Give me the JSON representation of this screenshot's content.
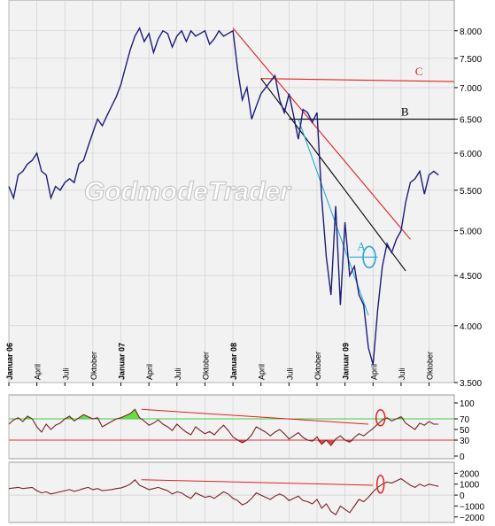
{
  "watermark": "GodmodeTrader",
  "colors": {
    "price_line": "#1c1c7a",
    "red": "#e02020",
    "black": "#000000",
    "cyan": "#22aadd",
    "osc_line": "#7a2020",
    "band_green": "#44cc44",
    "band_red": "#dd3333",
    "fill_green": "#66dd44",
    "fill_red": "#dd4444",
    "grid": "#cccccc"
  },
  "chart_data": [
    {
      "type": "line",
      "name": "price",
      "y_log": true,
      "ylim": [
        3500,
        8600
      ],
      "y_ticks": [
        3500,
        4000,
        4500,
        5000,
        5500,
        6000,
        6500,
        7000,
        7500,
        8000
      ],
      "y_tick_labels": [
        "3.500",
        "4.000",
        "4.500",
        "5.000",
        "5.500",
        "6.000",
        "6.500",
        "7.000",
        "7.500",
        "8.000"
      ],
      "xlim": [
        0,
        47.7
      ],
      "x_ticks": [
        {
          "month": 0,
          "label": "Januar 06",
          "bold": true
        },
        {
          "month": 3,
          "label": "April",
          "bold": false
        },
        {
          "month": 6,
          "label": "Juli",
          "bold": false
        },
        {
          "month": 9,
          "label": "Oktober",
          "bold": false
        },
        {
          "month": 12,
          "label": "Januar 07",
          "bold": true
        },
        {
          "month": 15,
          "label": "April",
          "bold": false
        },
        {
          "month": 18,
          "label": "Juli",
          "bold": false
        },
        {
          "month": 21,
          "label": "Oktober",
          "bold": false
        },
        {
          "month": 24,
          "label": "Januar 08",
          "bold": true
        },
        {
          "month": 27,
          "label": "April",
          "bold": false
        },
        {
          "month": 30,
          "label": "Juli",
          "bold": false
        },
        {
          "month": 33,
          "label": "Oktober",
          "bold": false
        },
        {
          "month": 36,
          "label": "Januar 09",
          "bold": true
        },
        {
          "month": 39,
          "label": "April",
          "bold": false
        },
        {
          "month": 42,
          "label": "Juli",
          "bold": false
        },
        {
          "month": 45,
          "label": "Oktober",
          "bold": false
        }
      ],
      "x": [
        0,
        0.5,
        1,
        1.5,
        2,
        2.5,
        3,
        3.5,
        4,
        4.5,
        5,
        5.5,
        6,
        6.5,
        7,
        7.5,
        8,
        8.5,
        9,
        9.5,
        10,
        10.5,
        11,
        11.5,
        12,
        12.5,
        13,
        13.5,
        14,
        14.5,
        15,
        15.5,
        16,
        16.5,
        17,
        17.5,
        18,
        18.5,
        19,
        19.5,
        20,
        20.5,
        21,
        21.5,
        22,
        22.5,
        23,
        23.5,
        24,
        24.5,
        25,
        25.5,
        26,
        26.5,
        27,
        27.5,
        28,
        28.5,
        29,
        29.5,
        30,
        30.5,
        31,
        31.5,
        32,
        32.5,
        33,
        33.5,
        34,
        34.5,
        35,
        35.5,
        36,
        36.5,
        37,
        37.5,
        38,
        38.5,
        39,
        39.5,
        40,
        40.5,
        41,
        41.5,
        42,
        42.5,
        43,
        43.5,
        44,
        44.5,
        45,
        45.5,
        46
      ],
      "values": [
        5550,
        5400,
        5700,
        5750,
        5850,
        5900,
        6000,
        5750,
        5700,
        5400,
        5550,
        5500,
        5600,
        5650,
        5600,
        5850,
        5900,
        6100,
        6300,
        6500,
        6400,
        6550,
        6700,
        6850,
        7050,
        7350,
        7650,
        7900,
        8050,
        7800,
        7950,
        7600,
        7850,
        8000,
        7950,
        7700,
        7900,
        8000,
        7800,
        8000,
        7900,
        7950,
        8000,
        7750,
        7850,
        8000,
        7900,
        7950,
        8000,
        7300,
        6800,
        7000,
        6500,
        6700,
        6900,
        7000,
        7100,
        7200,
        6800,
        6600,
        6900,
        6550,
        6200,
        6650,
        6600,
        6450,
        6600,
        5400,
        4700,
        4300,
        5300,
        4200,
        5100,
        4500,
        4600,
        4300,
        4200,
        3800,
        3650,
        4150,
        4600,
        4850,
        4750,
        4900,
        5000,
        5350,
        5600,
        5650,
        5750,
        5450,
        5700,
        5750,
        5700
      ],
      "annotations": [
        {
          "label": "A",
          "price": 4700
        },
        {
          "label": "B",
          "price": 6500
        },
        {
          "label": "C",
          "price": 7100
        }
      ]
    },
    {
      "type": "line",
      "name": "oscillator_1",
      "ylim": [
        -5,
        115
      ],
      "y_ticks": [
        0,
        30,
        50,
        70,
        100
      ],
      "y_tick_labels": [
        "0",
        "30",
        "50",
        "70",
        "100"
      ],
      "bands": [
        70,
        30
      ],
      "x": [
        0,
        0.5,
        1,
        1.5,
        2,
        2.5,
        3,
        3.5,
        4,
        4.5,
        5,
        5.5,
        6,
        6.5,
        7,
        7.5,
        8,
        8.5,
        9,
        9.5,
        10,
        10.5,
        11,
        11.5,
        12,
        12.5,
        13,
        13.5,
        14,
        14.5,
        15,
        15.5,
        16,
        16.5,
        17,
        17.5,
        18,
        18.5,
        19,
        19.5,
        20,
        20.5,
        21,
        21.5,
        22,
        22.5,
        23,
        23.5,
        24,
        24.5,
        25,
        25.5,
        26,
        26.5,
        27,
        27.5,
        28,
        28.5,
        29,
        29.5,
        30,
        30.5,
        31,
        31.5,
        32,
        32.5,
        33,
        33.5,
        34,
        34.5,
        35,
        35.5,
        36,
        36.5,
        37,
        37.5,
        38,
        38.5,
        39,
        39.5,
        40,
        40.5,
        41,
        41.5,
        42,
        42.5,
        43,
        43.5,
        44,
        44.5,
        45,
        45.5,
        46
      ],
      "values": [
        60,
        68,
        72,
        65,
        75,
        70,
        55,
        45,
        60,
        50,
        58,
        62,
        70,
        75,
        66,
        72,
        78,
        74,
        70,
        72,
        55,
        60,
        65,
        70,
        72,
        76,
        80,
        88,
        72,
        66,
        58,
        62,
        68,
        60,
        55,
        48,
        60,
        52,
        45,
        40,
        55,
        48,
        42,
        46,
        40,
        50,
        58,
        48,
        36,
        30,
        25,
        30,
        40,
        55,
        50,
        45,
        38,
        45,
        50,
        42,
        32,
        38,
        44,
        35,
        30,
        28,
        36,
        22,
        30,
        20,
        32,
        38,
        30,
        26,
        35,
        42,
        38,
        45,
        52,
        60,
        68,
        72,
        66,
        70,
        74,
        62,
        56,
        50,
        62,
        58,
        65,
        60,
        60
      ]
    },
    {
      "type": "line",
      "name": "oscillator_2",
      "ylim": [
        -2500,
        3000
      ],
      "y_ticks": [
        -2000,
        -1000,
        0,
        1000,
        2000
      ],
      "y_tick_labels": [
        "−2000",
        "−1000",
        "0",
        "1000",
        "2000"
      ],
      "x": [
        0,
        0.5,
        1,
        1.5,
        2,
        2.5,
        3,
        3.5,
        4,
        4.5,
        5,
        5.5,
        6,
        6.5,
        7,
        7.5,
        8,
        8.5,
        9,
        9.5,
        10,
        10.5,
        11,
        11.5,
        12,
        12.5,
        13,
        13.5,
        14,
        14.5,
        15,
        15.5,
        16,
        16.5,
        17,
        17.5,
        18,
        18.5,
        19,
        19.5,
        20,
        20.5,
        21,
        21.5,
        22,
        22.5,
        23,
        23.5,
        24,
        24.5,
        25,
        25.5,
        26,
        26.5,
        27,
        27.5,
        28,
        28.5,
        29,
        29.5,
        30,
        30.5,
        31,
        31.5,
        32,
        32.5,
        33,
        33.5,
        34,
        34.5,
        35,
        35.5,
        36,
        36.5,
        37,
        37.5,
        38,
        38.5,
        39,
        39.5,
        40,
        40.5,
        41,
        41.5,
        42,
        42.5,
        43,
        43.5,
        44,
        44.5,
        45,
        45.5,
        46
      ],
      "values": [
        600,
        650,
        700,
        600,
        650,
        700,
        400,
        200,
        300,
        100,
        200,
        300,
        400,
        500,
        350,
        450,
        600,
        700,
        500,
        600,
        400,
        450,
        500,
        600,
        650,
        800,
        1000,
        1400,
        900,
        700,
        500,
        600,
        700,
        550,
        400,
        100,
        300,
        200,
        -100,
        -300,
        200,
        0,
        -200,
        -100,
        -300,
        0,
        300,
        100,
        -300,
        -500,
        -900,
        -700,
        -300,
        200,
        0,
        -200,
        -400,
        -100,
        100,
        -100,
        -500,
        -300,
        -100,
        -500,
        -600,
        -800,
        -400,
        -1200,
        -800,
        -1500,
        -1800,
        -1000,
        -1300,
        -1600,
        -1000,
        -400,
        -600,
        -200,
        300,
        700,
        1000,
        1200,
        1100,
        1300,
        1500,
        1200,
        900,
        700,
        1000,
        800,
        1000,
        900,
        800
      ]
    }
  ]
}
